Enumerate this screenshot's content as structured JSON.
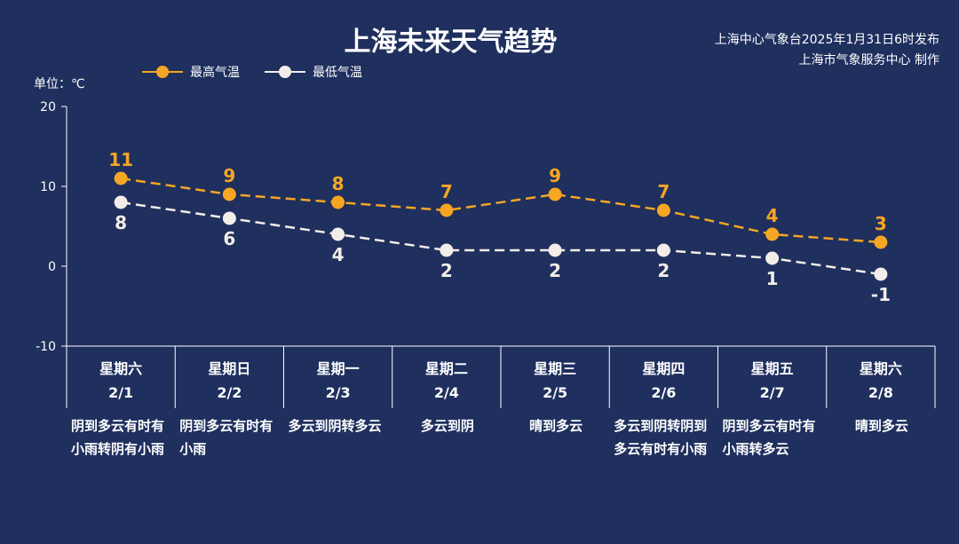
{
  "header": {
    "title": "上海未来天气趋势",
    "source_line1": "上海中心气象台2025年1月31日6时发布",
    "source_line2": "上海市气象服务中心 制作"
  },
  "legend": {
    "high_label": "最高气温",
    "low_label": "最低气温"
  },
  "unit_label": "单位：℃",
  "colors": {
    "background": "#1f2f5e",
    "high": "#f5a623",
    "low": "#f2ede8",
    "axis": "#ffffff"
  },
  "chart_data": {
    "type": "line",
    "categories": [
      "2/1",
      "2/2",
      "2/3",
      "2/4",
      "2/5",
      "2/6",
      "2/7",
      "2/8"
    ],
    "weekdays": [
      "星期六",
      "星期日",
      "星期一",
      "星期二",
      "星期三",
      "星期四",
      "星期五",
      "星期六"
    ],
    "descriptions": [
      "阴到多云有时有小雨转阴有小雨",
      "阴到多云有时有小雨",
      "多云到阴转多云",
      "多云到阴",
      "晴到多云",
      "多云到阴转阴到多云有时有小雨",
      "阴到多云有时有小雨转多云",
      "晴到多云"
    ],
    "series": [
      {
        "name": "最高气温",
        "values": [
          11,
          9,
          8,
          7,
          9,
          7,
          4,
          3
        ]
      },
      {
        "name": "最低气温",
        "values": [
          8,
          6,
          4,
          2,
          2,
          2,
          1,
          -1
        ]
      }
    ],
    "ylim": [
      -10,
      20
    ],
    "yticks": [
      -10,
      0,
      10,
      20
    ],
    "grid": false,
    "legend_position": "top-left"
  }
}
